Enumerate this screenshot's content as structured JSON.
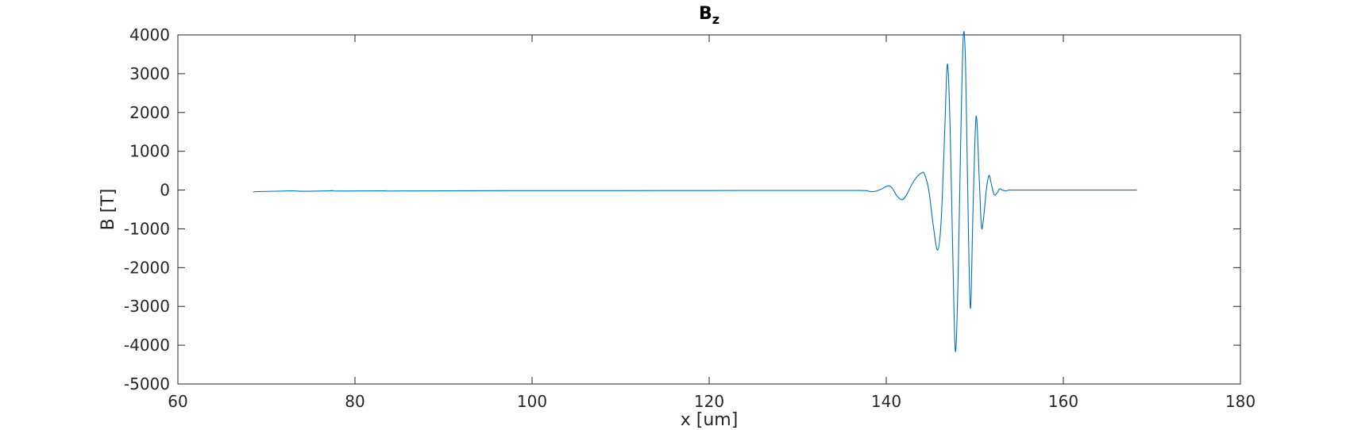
{
  "chart_data": {
    "type": "line",
    "title": "B",
    "title_subscript": "z",
    "xlabel": "x [um]",
    "ylabel": "B [T]",
    "xlim": [
      60,
      180
    ],
    "ylim": [
      -5000,
      4000
    ],
    "xticks": [
      60,
      80,
      100,
      120,
      140,
      160,
      180
    ],
    "yticks": [
      -5000,
      -4000,
      -3000,
      -2000,
      -1000,
      0,
      1000,
      2000,
      3000,
      4000
    ],
    "grid": false,
    "box": true,
    "line_color": "#0072BD",
    "axis_color": "#262626",
    "series": [
      {
        "x": [
          68.5,
          69.0,
          72.0,
          73.0,
          74.0,
          77.0,
          77.5,
          78.0,
          83.0,
          83.5,
          84.0,
          90.0,
          100.0,
          110.0,
          120.0,
          130.0,
          137.0,
          138.0,
          138.6,
          139.4,
          140.2,
          140.7,
          141.2,
          141.8,
          142.3,
          142.9,
          143.5,
          144.0,
          144.3,
          144.8,
          145.3,
          145.8,
          146.2,
          146.6,
          146.9,
          147.2,
          147.5,
          147.8,
          148.1,
          148.4,
          148.7,
          148.95,
          149.2,
          149.5,
          149.8,
          150.15,
          150.5,
          150.75,
          151.0,
          151.3,
          151.6,
          151.9,
          152.2,
          152.5,
          152.8,
          153.1,
          153.5,
          153.9,
          154.3,
          154.7,
          155.2,
          156.0,
          160.0,
          165.0,
          168.3
        ],
        "y": [
          -50,
          -40,
          -25,
          -20,
          -30,
          -20,
          -15,
          -25,
          -20,
          -15,
          -25,
          -20,
          -15,
          -15,
          -12,
          -10,
          -10,
          -30,
          -40,
          20,
          110,
          40,
          -150,
          -250,
          -120,
          150,
          350,
          440,
          420,
          0,
          -900,
          -1550,
          -800,
          1500,
          3250,
          1700,
          -1500,
          -4150,
          -2400,
          1200,
          3950,
          3300,
          0,
          -3050,
          -500,
          1900,
          300,
          -950,
          -700,
          0,
          380,
          120,
          -120,
          -80,
          30,
          0,
          -20,
          0,
          0,
          0,
          0,
          0,
          0,
          0,
          0
        ]
      }
    ]
  }
}
